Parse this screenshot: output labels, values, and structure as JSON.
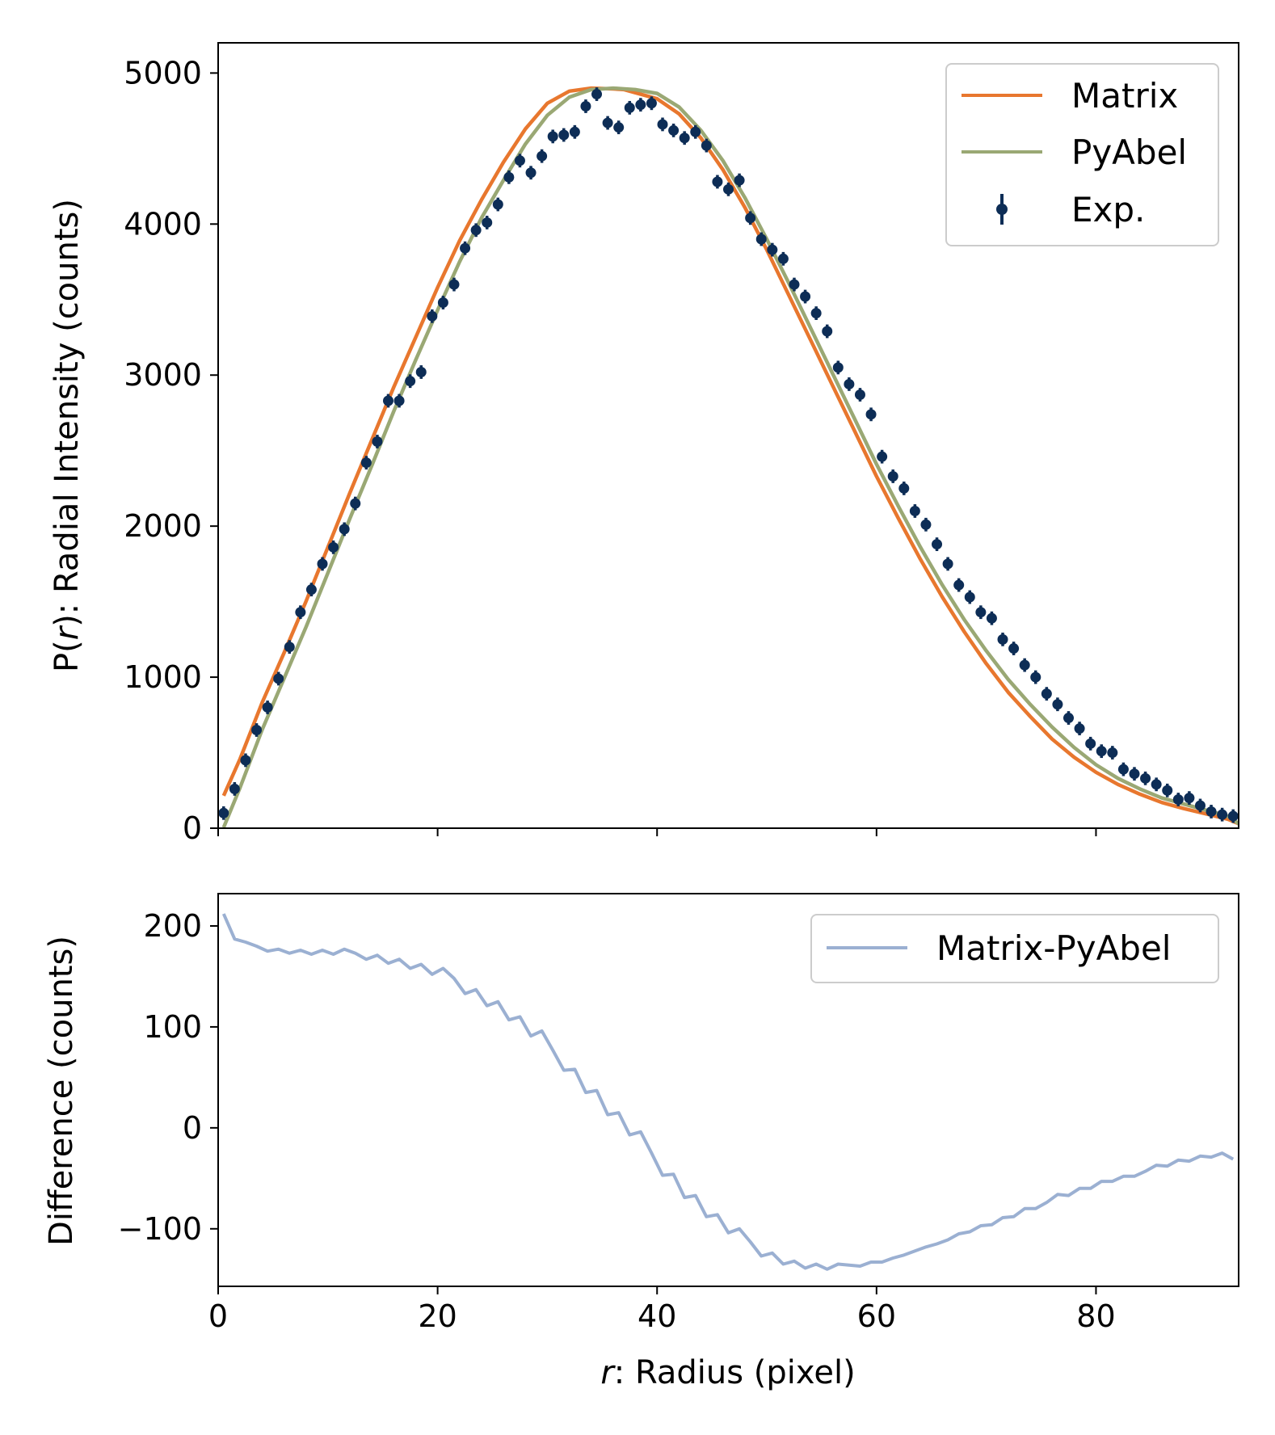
{
  "chart_data": [
    {
      "type": "line",
      "panel": "top",
      "xlabel_var": "r",
      "xlabel_rest": ": Radius (pixel)",
      "ylabel_prefix": "P(",
      "ylabel_var": "r",
      "ylabel_suffix": "): Radial Intensity (counts)",
      "xlim": [
        0,
        93
      ],
      "ylim": [
        0,
        5200
      ],
      "xticks": [
        0,
        20,
        40,
        60,
        80
      ],
      "yticks": [
        0,
        1000,
        2000,
        3000,
        4000,
        5000
      ],
      "ytick_labels": [
        "0",
        "1000",
        "2000",
        "3000",
        "4000",
        "5000"
      ],
      "legend_position": "top-right",
      "series": [
        {
          "name": "Matrix",
          "kind": "line",
          "color": "#e8772e",
          "x": [
            0.5,
            2,
            4,
            6,
            8,
            10,
            12,
            14,
            16,
            18,
            20,
            22,
            24,
            26,
            28,
            30,
            32,
            34,
            36,
            37,
            38,
            40,
            42,
            44,
            46,
            48,
            50,
            52,
            54,
            56,
            58,
            60,
            62,
            64,
            66,
            68,
            70,
            72,
            74,
            76,
            78,
            80,
            82,
            84,
            86,
            88,
            90,
            92,
            93
          ],
          "y": [
            215,
            460,
            830,
            1160,
            1500,
            1860,
            2220,
            2570,
            2920,
            3250,
            3580,
            3890,
            4160,
            4410,
            4630,
            4800,
            4880,
            4900,
            4895,
            4890,
            4870,
            4830,
            4730,
            4570,
            4360,
            4110,
            3830,
            3530,
            3230,
            2930,
            2630,
            2330,
            2050,
            1780,
            1530,
            1300,
            1090,
            900,
            740,
            590,
            470,
            370,
            290,
            225,
            170,
            130,
            95,
            60,
            30
          ]
        },
        {
          "name": "PyAbel",
          "kind": "line",
          "color": "#9aa874",
          "x": [
            0.5,
            2,
            4,
            6,
            8,
            10,
            12,
            14,
            16,
            18,
            20,
            22,
            24,
            26,
            28,
            30,
            32,
            34,
            36,
            37,
            38,
            40,
            42,
            44,
            46,
            48,
            50,
            52,
            54,
            56,
            58,
            60,
            62,
            64,
            66,
            68,
            70,
            72,
            74,
            76,
            78,
            80,
            82,
            84,
            86,
            88,
            90,
            92,
            93
          ],
          "y": [
            5,
            270,
            650,
            990,
            1330,
            1690,
            2050,
            2400,
            2760,
            3100,
            3430,
            3750,
            4040,
            4290,
            4530,
            4720,
            4840,
            4890,
            4900,
            4895,
            4890,
            4865,
            4775,
            4620,
            4420,
            4175,
            3900,
            3610,
            3310,
            3010,
            2710,
            2410,
            2130,
            1860,
            1610,
            1380,
            1175,
            985,
            820,
            670,
            535,
            420,
            330,
            260,
            200,
            160,
            120,
            80,
            30
          ]
        },
        {
          "name": "Exp.",
          "kind": "errorbar",
          "color": "#0d2d56",
          "yerr": 45,
          "x": [
            0.5,
            1.5,
            2.5,
            3.5,
            4.5,
            5.5,
            6.5,
            7.5,
            8.5,
            9.5,
            10.5,
            11.5,
            12.5,
            13.5,
            14.5,
            15.5,
            16.5,
            17.5,
            18.5,
            19.5,
            20.5,
            21.5,
            22.5,
            23.5,
            24.5,
            25.5,
            26.5,
            27.5,
            28.5,
            29.5,
            30.5,
            31.5,
            32.5,
            33.5,
            34.5,
            35.5,
            36.5,
            37.5,
            38.5,
            39.5,
            40.5,
            41.5,
            42.5,
            43.5,
            44.5,
            45.5,
            46.5,
            47.5,
            48.5,
            49.5,
            50.5,
            51.5,
            52.5,
            53.5,
            54.5,
            55.5,
            56.5,
            57.5,
            58.5,
            59.5,
            60.5,
            61.5,
            62.5,
            63.5,
            64.5,
            65.5,
            66.5,
            67.5,
            68.5,
            69.5,
            70.5,
            71.5,
            72.5,
            73.5,
            74.5,
            75.5,
            76.5,
            77.5,
            78.5,
            79.5,
            80.5,
            81.5,
            82.5,
            83.5,
            84.5,
            85.5,
            86.5,
            87.5,
            88.5,
            89.5,
            90.5,
            91.5,
            92.5
          ],
          "y": [
            100,
            260,
            450,
            650,
            800,
            990,
            1200,
            1430,
            1580,
            1750,
            1860,
            1980,
            2150,
            2420,
            2560,
            2830,
            2830,
            2960,
            3020,
            3390,
            3480,
            3600,
            3840,
            3960,
            4010,
            4130,
            4310,
            4420,
            4340,
            4450,
            4580,
            4590,
            4610,
            4780,
            4860,
            4670,
            4640,
            4770,
            4790,
            4800,
            4660,
            4620,
            4570,
            4610,
            4520,
            4280,
            4230,
            4290,
            4040,
            3900,
            3830,
            3770,
            3600,
            3520,
            3410,
            3290,
            3050,
            2940,
            2870,
            2740,
            2460,
            2330,
            2250,
            2100,
            2010,
            1880,
            1750,
            1610,
            1530,
            1430,
            1390,
            1250,
            1190,
            1080,
            1000,
            890,
            820,
            730,
            660,
            560,
            510,
            500,
            390,
            360,
            330,
            290,
            250,
            190,
            200,
            150,
            110,
            90,
            80
          ]
        }
      ]
    },
    {
      "type": "line",
      "panel": "bottom",
      "ylabel": "Difference (counts)",
      "xlabel_var": "r",
      "xlabel_rest": ": Radius (pixel)",
      "xlim": [
        0,
        93
      ],
      "ylim": [
        -157,
        232
      ],
      "xticks": [
        0,
        20,
        40,
        60,
        80
      ],
      "xtick_labels": [
        "0",
        "20",
        "40",
        "60",
        "80"
      ],
      "yticks": [
        -100,
        0,
        100,
        200
      ],
      "ytick_labels": [
        "−100",
        "0",
        "100",
        "200"
      ],
      "legend_position": "top-right",
      "series": [
        {
          "name": "Matrix-PyAbel",
          "kind": "line",
          "color": "#9bb0d2",
          "x": [
            0.5,
            1.5,
            2.5,
            3.5,
            4.5,
            5.5,
            6.5,
            7.5,
            8.5,
            9.5,
            10.5,
            11.5,
            12.5,
            13.5,
            14.5,
            15.5,
            16.5,
            17.5,
            18.5,
            19.5,
            20.5,
            21.5,
            22.5,
            23.5,
            24.5,
            25.5,
            26.5,
            27.5,
            28.5,
            29.5,
            30.5,
            31.5,
            32.5,
            33.5,
            34.5,
            35.5,
            36.5,
            37.5,
            38.5,
            39.5,
            40.5,
            41.5,
            42.5,
            43.5,
            44.5,
            45.5,
            46.5,
            47.5,
            48.5,
            49.5,
            50.5,
            51.5,
            52.5,
            53.5,
            54.5,
            55.5,
            56.5,
            57.5,
            58.5,
            59.5,
            60.5,
            61.5,
            62.5,
            63.5,
            64.5,
            65.5,
            66.5,
            67.5,
            68.5,
            69.5,
            70.5,
            71.5,
            72.5,
            73.5,
            74.5,
            75.5,
            76.5,
            77.5,
            78.5,
            79.5,
            80.5,
            81.5,
            82.5,
            83.5,
            84.5,
            85.5,
            86.5,
            87.5,
            88.5,
            89.5,
            90.5,
            91.5,
            92.5
          ],
          "y": [
            212,
            187,
            184,
            180,
            175,
            177,
            173,
            176,
            172,
            176,
            172,
            177,
            173,
            167,
            171,
            163,
            167,
            158,
            162,
            152,
            158,
            148,
            133,
            137,
            121,
            125,
            107,
            110,
            91,
            96,
            77,
            57,
            58,
            35,
            37,
            13,
            15,
            -7,
            -4,
            -25,
            -47,
            -46,
            -69,
            -67,
            -88,
            -86,
            -104,
            -100,
            -113,
            -127,
            -124,
            -135,
            -132,
            -139,
            -135,
            -140,
            -135,
            -136,
            -137,
            -133,
            -133,
            -129,
            -126,
            -122,
            -118,
            -115,
            -111,
            -105,
            -103,
            -97,
            -96,
            -89,
            -88,
            -80,
            -80,
            -74,
            -66,
            -67,
            -60,
            -60,
            -53,
            -53,
            -48,
            -48,
            -43,
            -37,
            -38,
            -32,
            -33,
            -28,
            -29,
            -25,
            -31
          ]
        }
      ]
    }
  ]
}
